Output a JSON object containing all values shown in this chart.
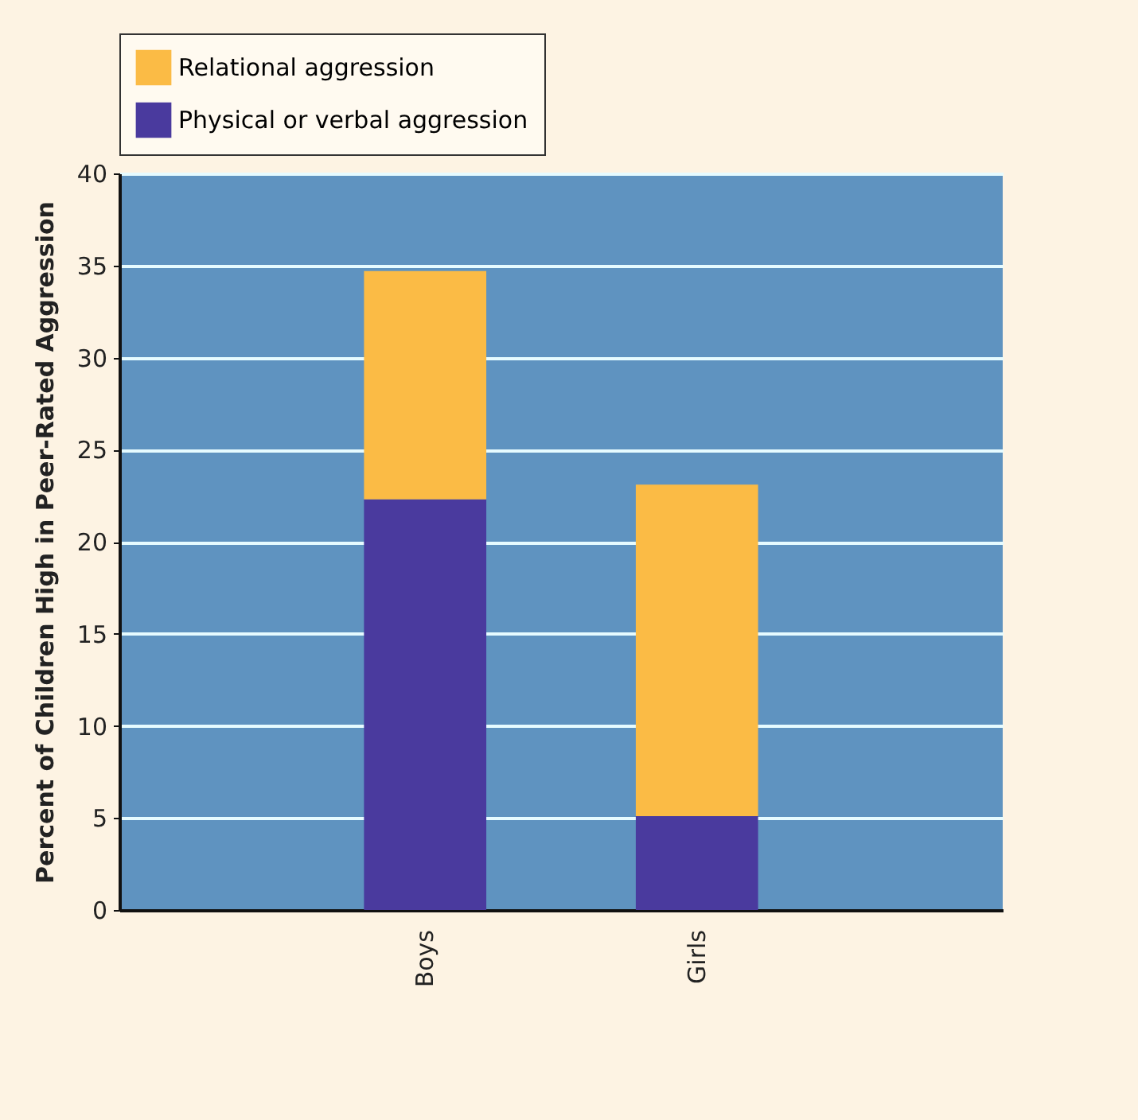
{
  "chart_data": {
    "type": "bar",
    "stacked": true,
    "ylabel": "Percent of Children High in Peer-Rated Aggression",
    "categories": [
      "Boys",
      "Girls"
    ],
    "series": [
      {
        "name": "Physical or verbal aggression",
        "color": "#4a3a9e",
        "values": [
          22.3,
          5.1
        ]
      },
      {
        "name": "Relational aggression",
        "color": "#fbbb45",
        "values": [
          12.4,
          18.0
        ]
      }
    ],
    "ylim": [
      0,
      40
    ],
    "yticks": [
      0,
      5,
      10,
      15,
      20,
      25,
      30,
      35,
      40
    ],
    "grid": "y",
    "legend": "top"
  }
}
